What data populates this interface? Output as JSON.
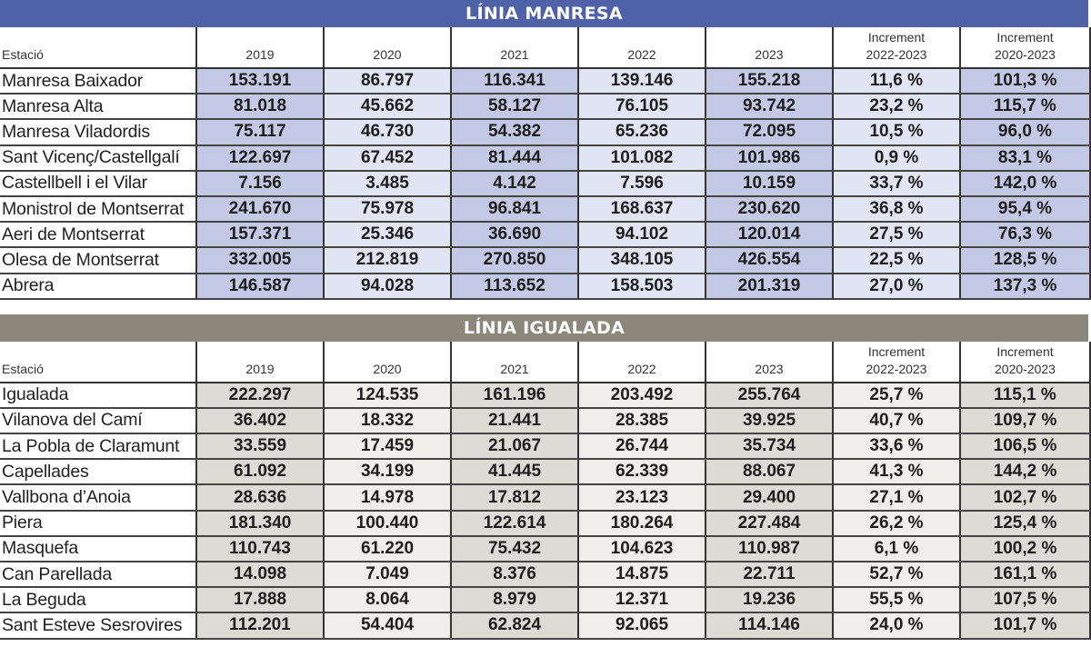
{
  "colors": {
    "manresa_banner": "#4f62a8",
    "igualada_banner": "#8c877b",
    "manresa_dark": "#c3c8e4",
    "manresa_light": "#e1e4f2",
    "igualada_dark": "#dddbd6",
    "igualada_light": "#efeeeb"
  },
  "headers": {
    "station": "Estació",
    "y2019": "2019",
    "y2020": "2020",
    "y2021": "2021",
    "y2022": "2022",
    "y2023": "2023",
    "inc1_l1": "Increment",
    "inc1_l2": "2022-2023",
    "inc2_l1": "Increment",
    "inc2_l2": "2020-2023"
  },
  "manresa": {
    "title": "LÍNIA MANRESA",
    "rows": [
      [
        "Manresa Baixador",
        "153.191",
        "86.797",
        "116.341",
        "139.146",
        "155.218",
        "11,6 %",
        "101,3 %"
      ],
      [
        "Manresa Alta",
        "81.018",
        "45.662",
        "58.127",
        "76.105",
        "93.742",
        "23,2 %",
        "115,7 %"
      ],
      [
        "Manresa Viladordis",
        "75.117",
        "46.730",
        "54.382",
        "65.236",
        "72.095",
        "10,5 %",
        "96,0 %"
      ],
      [
        "Sant Vicenç/Castellgalí",
        "122.697",
        "67.452",
        "81.444",
        "101.082",
        "101.986",
        "0,9 %",
        "83,1 %"
      ],
      [
        "Castellbell i el Vilar",
        "7.156",
        "3.485",
        "4.142",
        "7.596",
        "10.159",
        "33,7 %",
        "142,0 %"
      ],
      [
        "Monistrol de Montserrat",
        "241.670",
        "75.978",
        "96.841",
        "168.637",
        "230.620",
        "36,8 %",
        "95,4 %"
      ],
      [
        "Aeri de Montserrat",
        "157.371",
        "25.346",
        "36.690",
        "94.102",
        "120.014",
        "27,5 %",
        "76,3 %"
      ],
      [
        "Olesa de Montserrat",
        "332.005",
        "212.819",
        "270.850",
        "348.105",
        "426.554",
        "22,5 %",
        "128,5 %"
      ],
      [
        "Abrera",
        "146.587",
        "94.028",
        "113.652",
        "158.503",
        "201.319",
        "27,0 %",
        "137,3 %"
      ]
    ]
  },
  "igualada": {
    "title": "LÍNIA IGUALADA",
    "rows": [
      [
        "Igualada",
        "222.297",
        "124.535",
        "161.196",
        "203.492",
        "255.764",
        "25,7 %",
        "115,1 %"
      ],
      [
        "Vilanova del Camí",
        "36.402",
        "18.332",
        "21.441",
        "28.385",
        "39.925",
        "40,7 %",
        "109,7 %"
      ],
      [
        "La Pobla de Claramunt",
        "33.559",
        "17.459",
        "21.067",
        "26.744",
        "35.734",
        "33,6 %",
        "106,5 %"
      ],
      [
        "Capellades",
        "61.092",
        "34.199",
        "41.445",
        "62.339",
        "88.067",
        "41,3 %",
        "144,2 %"
      ],
      [
        "Vallbona d’Anoia",
        "28.636",
        "14.978",
        "17.812",
        "23.123",
        "29.400",
        "27,1 %",
        "102,7 %"
      ],
      [
        "Piera",
        "181.340",
        "100.440",
        "122.614",
        "180.264",
        "227.484",
        "26,2 %",
        "125,4 %"
      ],
      [
        "Masquefa",
        "110.743",
        "61.220",
        "75.432",
        "104.623",
        "110.987",
        "6,1 %",
        "100,2 %"
      ],
      [
        "Can Parellada",
        "14.098",
        "7.049",
        "8.376",
        "14.875",
        "22.711",
        "52,7 %",
        "161,1 %"
      ],
      [
        "La Beguda",
        "17.888",
        "8.064",
        "8.979",
        "12.371",
        "19.236",
        "55,5 %",
        "107,5 %"
      ],
      [
        "Sant Esteve Sesrovires",
        "112.201",
        "54.404",
        "62.824",
        "92.065",
        "114.146",
        "24,0 %",
        "101,7 %"
      ]
    ]
  }
}
